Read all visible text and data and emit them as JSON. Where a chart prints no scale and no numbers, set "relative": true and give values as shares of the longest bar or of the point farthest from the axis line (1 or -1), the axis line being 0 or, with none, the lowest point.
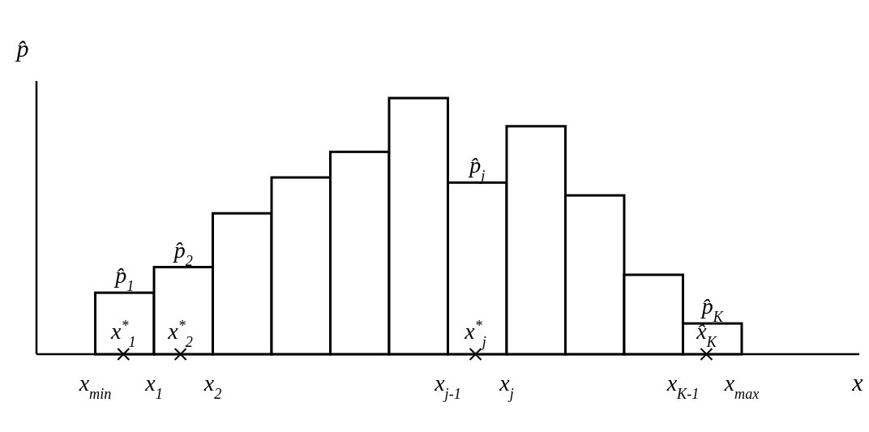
{
  "chart_data": {
    "type": "bar",
    "relative": true,
    "xlabel": "x",
    "ylabel": "p̂",
    "categories": [
      null,
      null,
      null,
      null,
      null,
      null,
      null,
      null,
      null,
      null,
      null
    ],
    "values": [
      0.24,
      0.34,
      0.55,
      0.69,
      0.79,
      1,
      0.67,
      0.89,
      0.62,
      0.31,
      0.12
    ],
    "color": "#ffffff",
    "annotations": [
      "p̂$_{1}$",
      "p̂$_{2}$",
      "p̂$_{j}$",
      "p̂$_{K}$",
      "x$^{*}$$_{1}$",
      "x$^{*}$$_{2}$",
      "x$^{*}$$_{j}$",
      "x̂$_{K}$",
      "x$_{min}$",
      "x$_{1}$",
      "x$_{2}$",
      "x$_{j-1}$",
      "x$_{j}$",
      "x$_{K-1}$",
      "x$_{max}$"
    ]
  }
}
